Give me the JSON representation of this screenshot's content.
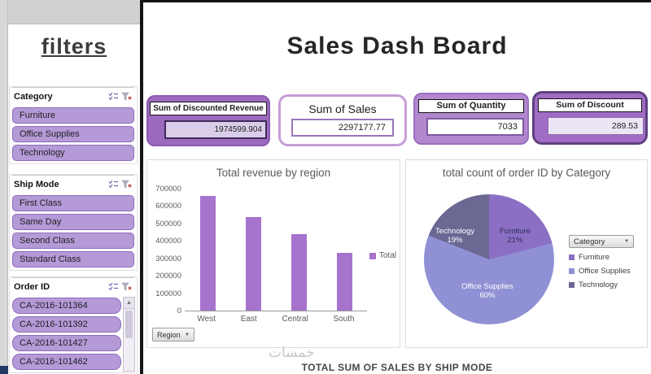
{
  "sidebar": {
    "title": "filters"
  },
  "header": {
    "title": "Sales Dash Board"
  },
  "slicers": [
    {
      "title": "Category",
      "items": [
        "Furniture",
        "Office Supplies",
        "Technology"
      ]
    },
    {
      "title": "Ship Mode",
      "items": [
        "First Class",
        "Same Day",
        "Second Class",
        "Standard Class"
      ]
    },
    {
      "title": "Order ID",
      "items": [
        "CA-2016-101364",
        "CA-2016-101392",
        "CA-2016-101427",
        "CA-2016-101462"
      ]
    }
  ],
  "kpis": [
    {
      "label": "Sum of Discounted Revenue",
      "value": "1974599.904"
    },
    {
      "label": "Sum of Sales",
      "value": "2297177.77"
    },
    {
      "label": "Sum of Quantity",
      "value": "7033"
    },
    {
      "label": "Sum of Discount",
      "value": "289.53"
    }
  ],
  "chart_data": [
    {
      "type": "bar",
      "title": "Total revenue by region",
      "categories": [
        "West",
        "East",
        "Central",
        "South"
      ],
      "values": [
        660000,
        535000,
        440000,
        330000
      ],
      "series_name": "Total",
      "color": "#a673cd",
      "ylim": [
        0,
        700000
      ],
      "ytick_labels": [
        "700000",
        "600000",
        "500000",
        "400000",
        "300000",
        "200000",
        "100000",
        "0"
      ],
      "filter_button": "Region",
      "legend_position": "right",
      "grid": false
    },
    {
      "type": "pie",
      "title": "total count of order ID by Category",
      "categories": [
        "Furniture",
        "Office Supplies",
        "Technology"
      ],
      "values": [
        21,
        60,
        19
      ],
      "pct_labels": [
        "21%",
        "60%",
        "19%"
      ],
      "colors": [
        "#8a6fc5",
        "#9090d4",
        "#6b6893"
      ],
      "legend_title": "Category",
      "legend_position": "right"
    }
  ],
  "footer": {
    "watermark": "خمسات",
    "section_title": "TOTAL SUM OF SALES BY SHIP MODE"
  },
  "icons": {
    "dropdown_arrow": "▼",
    "scroll_up": "▲"
  },
  "theme": {
    "accent": "#9b6ec3",
    "slicer_fill": "#b49ad7",
    "slicer_border": "#8d6cba"
  }
}
